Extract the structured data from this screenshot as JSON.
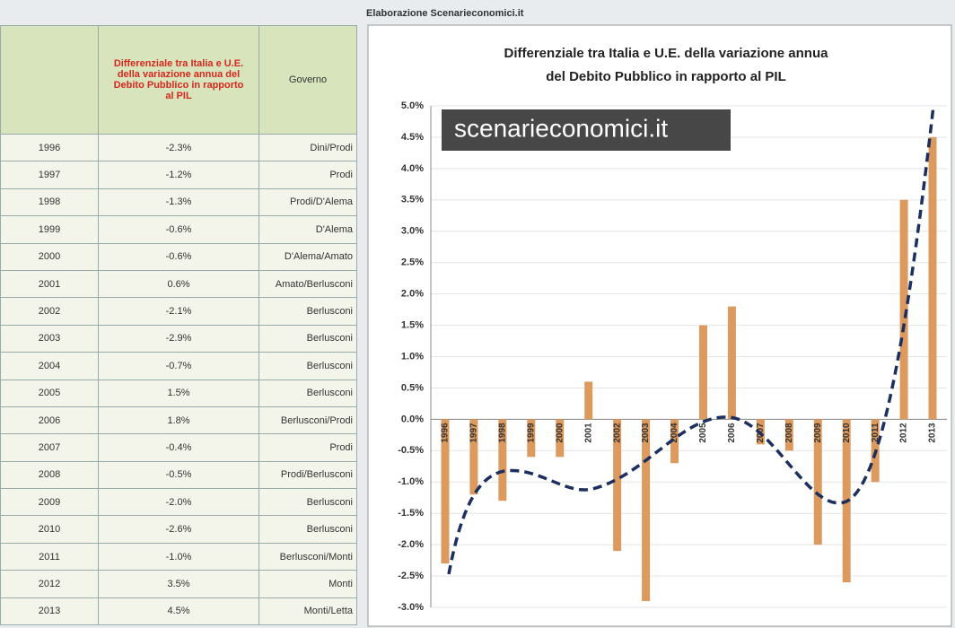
{
  "source": "Elaborazione Scenarieconomici.it",
  "table": {
    "header": [
      "",
      "Differenziale tra Italia e U.E. della variazione annua del Debito Pubblico in rapporto al PIL",
      "Governo"
    ],
    "rows": [
      [
        "1996",
        "-2.3%",
        "Dini/Prodi"
      ],
      [
        "1997",
        "-1.2%",
        "Prodi"
      ],
      [
        "1998",
        "-1.3%",
        "Prodi/D'Alema"
      ],
      [
        "1999",
        "-0.6%",
        "D'Alema"
      ],
      [
        "2000",
        "-0.6%",
        "D'Alema/Amato"
      ],
      [
        "2001",
        "0.6%",
        "Amato/Berlusconi"
      ],
      [
        "2002",
        "-2.1%",
        "Berlusconi"
      ],
      [
        "2003",
        "-2.9%",
        "Berlusconi"
      ],
      [
        "2004",
        "-0.7%",
        "Berlusconi"
      ],
      [
        "2005",
        "1.5%",
        "Berlusconi"
      ],
      [
        "2006",
        "1.8%",
        "Berlusconi/Prodi"
      ],
      [
        "2007",
        "-0.4%",
        "Prodi"
      ],
      [
        "2008",
        "-0.5%",
        "Prodi/Berlusconi"
      ],
      [
        "2009",
        "-2.0%",
        "Berlusconi"
      ],
      [
        "2010",
        "-2.6%",
        "Berlusconi"
      ],
      [
        "2011",
        "-1.0%",
        "Berlusconi/Monti"
      ],
      [
        "2012",
        "3.5%",
        "Monti"
      ],
      [
        "2013",
        "4.5%",
        "Monti/Letta"
      ]
    ]
  },
  "logo": "scenarieconomici.it",
  "chart_data": {
    "type": "bar",
    "title": [
      "Differenziale tra Italia e U.E. della variazione annua",
      "del Debito Pubblico in rapporto al PIL"
    ],
    "categories": [
      "1996",
      "1997",
      "1998",
      "1999",
      "2000",
      "2001",
      "2002",
      "2003",
      "2004",
      "2005",
      "2006",
      "2007",
      "2008",
      "2009",
      "2010",
      "2011",
      "2012",
      "2013"
    ],
    "values": [
      -2.3,
      -1.2,
      -1.3,
      -0.6,
      -0.6,
      0.6,
      -2.1,
      -2.9,
      -0.7,
      1.5,
      1.8,
      -0.4,
      -0.5,
      -2.0,
      -2.6,
      -1.0,
      3.5,
      4.5
    ],
    "color": "#dc9a5e",
    "ylim": [
      -3,
      5
    ],
    "yticks": [
      {
        "value": -3,
        "label": "-3.0%"
      },
      {
        "value": -2.5,
        "label": "-2.5%"
      },
      {
        "value": -2,
        "label": "-2.0%"
      },
      {
        "value": -1.5,
        "label": "-1.5%"
      },
      {
        "value": -1,
        "label": "-1.0%"
      },
      {
        "value": -0.5,
        "label": "-0.5%"
      },
      {
        "value": 0,
        "label": "0.0%"
      },
      {
        "value": 0.5,
        "label": "0.5%"
      },
      {
        "value": 1,
        "label": "1.0%"
      },
      {
        "value": 1.5,
        "label": "1.5%"
      },
      {
        "value": 2,
        "label": "2.0%"
      },
      {
        "value": 2.5,
        "label": "2.5%"
      },
      {
        "value": 3,
        "label": "3.0%"
      },
      {
        "value": 3.5,
        "label": "3.5%"
      },
      {
        "value": 4,
        "label": "4.0%"
      },
      {
        "value": 4.5,
        "label": "4.5%"
      },
      {
        "value": 5,
        "label": "5.0%"
      }
    ],
    "grid": true
  }
}
